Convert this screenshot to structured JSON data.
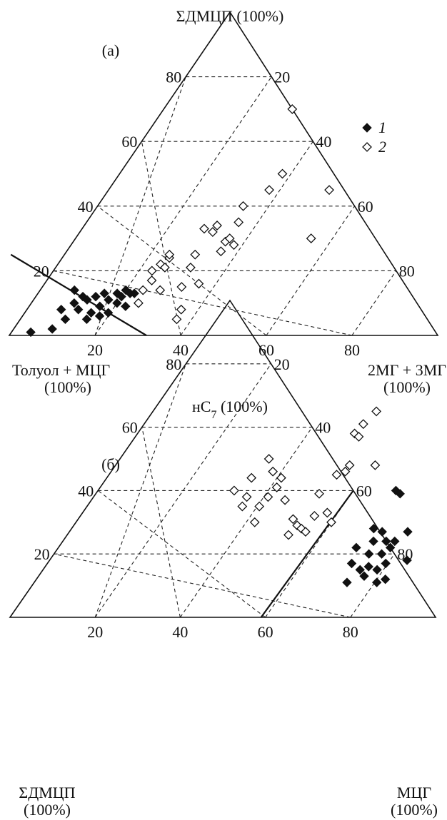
{
  "chart_data": [
    {
      "type": "scatter",
      "panel_label": "(a)",
      "vertex_labels": {
        "top": [
          "ΣДМЦП (100%)"
        ],
        "left": [
          "Толуол + МЦГ",
          "(100%)"
        ],
        "right": [
          "2МГ + 3МГ",
          "(100%)"
        ]
      },
      "ticks": {
        "left_edge": [
          "20",
          "40",
          "60",
          "80"
        ],
        "right_edge": [
          "80",
          "60",
          "40",
          "20"
        ],
        "bottom_edge": [
          "20",
          "40",
          "60",
          "80"
        ]
      },
      "boundary_line": {
        "from": [
          0,
          25
        ],
        "to": [
          32,
          0
        ]
      },
      "legend": [
        {
          "marker": "filled-diamond",
          "label": "1"
        },
        {
          "marker": "open-diamond",
          "label": "2"
        }
      ],
      "series": [
        {
          "name": "1",
          "marker": "filled-diamond",
          "points": [
            [
              5,
              1
            ],
            [
              10,
              2
            ],
            [
              12,
              8
            ],
            [
              13,
              5
            ],
            [
              15,
              10
            ],
            [
              15,
              14
            ],
            [
              16,
              8
            ],
            [
              17,
              12
            ],
            [
              18,
              5
            ],
            [
              18,
              11
            ],
            [
              19,
              7
            ],
            [
              20,
              12
            ],
            [
              21,
              6
            ],
            [
              21,
              9
            ],
            [
              22,
              13
            ],
            [
              23,
              7
            ],
            [
              23,
              11
            ],
            [
              25,
              10
            ],
            [
              25,
              13
            ],
            [
              26,
              12
            ],
            [
              27,
              9
            ],
            [
              27,
              14
            ],
            [
              28,
              13
            ],
            [
              29,
              13
            ]
          ]
        },
        {
          "name": "2",
          "marker": "open-diamond",
          "points": [
            [
              30,
              10
            ],
            [
              31,
              14
            ],
            [
              33,
              17
            ],
            [
              33,
              20
            ],
            [
              35,
              14
            ],
            [
              35,
              22
            ],
            [
              36,
              21
            ],
            [
              37,
              24
            ],
            [
              37,
              25
            ],
            [
              39,
              5
            ],
            [
              40,
              8
            ],
            [
              40,
              15
            ],
            [
              42,
              21
            ],
            [
              43,
              25
            ],
            [
              44,
              16
            ],
            [
              45,
              33
            ],
            [
              47,
              32
            ],
            [
              48,
              34
            ],
            [
              49,
              26
            ],
            [
              50,
              29
            ],
            [
              51,
              30
            ],
            [
              52,
              28
            ],
            [
              53,
              35
            ],
            [
              54,
              40
            ],
            [
              60,
              45
            ],
            [
              63,
              50
            ],
            [
              65,
              70
            ],
            [
              70,
              30
            ],
            [
              74,
              45
            ]
          ]
        }
      ]
    },
    {
      "type": "scatter",
      "panel_label": "(б)",
      "vertex_labels": {
        "top": [
          "нС7 (100%)"
        ],
        "left": [
          "ΣДМЦП",
          "(100%)"
        ],
        "right": [
          "МЦГ",
          "(100%)"
        ]
      },
      "ticks": {
        "left_edge": [
          "20",
          "40",
          "60",
          "80"
        ],
        "right_edge": [
          "80",
          "60",
          "40",
          "20"
        ],
        "bottom_edge": [
          "20",
          "40",
          "60",
          "80"
        ]
      },
      "boundary_line": {
        "from": [
          59,
          0
        ],
        "to": [
          80,
          40
        ]
      },
      "series": [
        {
          "name": "1",
          "marker": "filled-diamond",
          "points": [
            [
              79,
              11
            ],
            [
              80,
              17
            ],
            [
              81,
              22
            ],
            [
              82,
              15
            ],
            [
              83,
              13
            ],
            [
              84,
              16
            ],
            [
              84,
              20
            ],
            [
              85,
              24
            ],
            [
              85,
              28
            ],
            [
              86,
              11
            ],
            [
              86,
              15
            ],
            [
              87,
              20
            ],
            [
              87,
              27
            ],
            [
              88,
              12
            ],
            [
              88,
              17
            ],
            [
              88,
              24
            ],
            [
              89,
              22
            ],
            [
              90,
              24
            ],
            [
              90,
              40
            ],
            [
              91,
              39
            ],
            [
              93,
              27
            ],
            [
              93,
              18
            ]
          ]
        },
        {
          "name": "2",
          "marker": "open-diamond",
          "points": [
            [
              52,
              40
            ],
            [
              54,
              35
            ],
            [
              55,
              38
            ],
            [
              56,
              44
            ],
            [
              57,
              30
            ],
            [
              58,
              35
            ],
            [
              60,
              38
            ],
            [
              60,
              50
            ],
            [
              61,
              46
            ],
            [
              62,
              41
            ],
            [
              63,
              44
            ],
            [
              64,
              37
            ],
            [
              65,
              26
            ],
            [
              66,
              31
            ],
            [
              67,
              29
            ],
            [
              68,
              28
            ],
            [
              69,
              27
            ],
            [
              71,
              32
            ],
            [
              72,
              39
            ],
            [
              74,
              33
            ],
            [
              75,
              30
            ],
            [
              76,
              45
            ],
            [
              78,
              46
            ],
            [
              79,
              48
            ],
            [
              80,
              58
            ],
            [
              81,
              57
            ],
            [
              82,
              61
            ],
            [
              85,
              48
            ],
            [
              85,
              65
            ]
          ]
        }
      ]
    }
  ]
}
